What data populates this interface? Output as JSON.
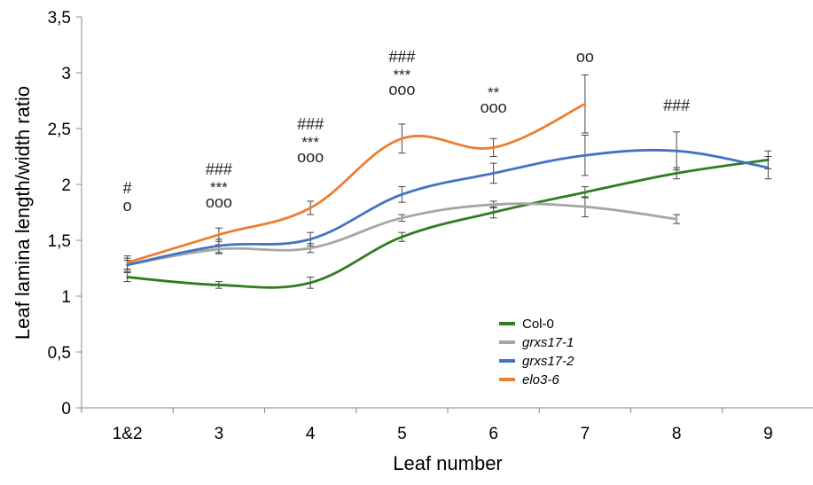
{
  "chart_data": {
    "type": "line",
    "xlabel": "Leaf number",
    "ylabel": "Leaf lamina length/width ratio",
    "categories": [
      "1&2",
      "3",
      "4",
      "5",
      "6",
      "7",
      "8",
      "9"
    ],
    "ylim": [
      0,
      3.5
    ],
    "yticks": [
      "0",
      "0,5",
      "1",
      "1,5",
      "2",
      "2,5",
      "3",
      "3,5"
    ],
    "grid": false,
    "legend_position": "bottom-right",
    "series": [
      {
        "name": "Col-0",
        "italic": false,
        "color": "#2e7d1e",
        "values": [
          1.17,
          1.1,
          1.12,
          1.53,
          1.75,
          1.93,
          2.1,
          2.22
        ],
        "errors": [
          0.04,
          0.03,
          0.05,
          0.04,
          0.05,
          0.05,
          0.05,
          0.08
        ]
      },
      {
        "name": "grxs17-1",
        "italic": true,
        "color": "#a6a6a6",
        "values": [
          1.28,
          1.42,
          1.43,
          1.7,
          1.82,
          1.8,
          1.69,
          null
        ],
        "errors": [
          0.04,
          0.04,
          0.04,
          0.03,
          0.03,
          0.09,
          0.04,
          null
        ]
      },
      {
        "name": "grxs17-2",
        "italic": true,
        "color": "#4472c4",
        "values": [
          1.28,
          1.45,
          1.51,
          1.91,
          2.1,
          2.26,
          2.3,
          2.15
        ],
        "errors": [
          0.06,
          0.06,
          0.06,
          0.07,
          0.09,
          0.18,
          0.17,
          0.1
        ]
      },
      {
        "name": "elo3-6",
        "italic": true,
        "color": "#ed7d31",
        "values": [
          1.3,
          1.55,
          1.79,
          2.41,
          2.33,
          2.72,
          null,
          null
        ],
        "errors": [
          0.06,
          0.06,
          0.06,
          0.13,
          0.08,
          0.26,
          null,
          null
        ]
      }
    ],
    "annotations": [
      {
        "category": "1&2",
        "lines": [
          "#",
          "o"
        ]
      },
      {
        "category": "3",
        "lines": [
          "###",
          "***",
          "ooo"
        ]
      },
      {
        "category": "4",
        "lines": [
          "###",
          "***",
          "ooo"
        ]
      },
      {
        "category": "5",
        "lines": [
          "###",
          "***",
          "ooo"
        ]
      },
      {
        "category": "6",
        "lines": [
          "**",
          "ooo"
        ]
      },
      {
        "category": "7",
        "lines": [
          "oo"
        ]
      },
      {
        "category": "8",
        "lines": [
          "###"
        ]
      }
    ]
  }
}
